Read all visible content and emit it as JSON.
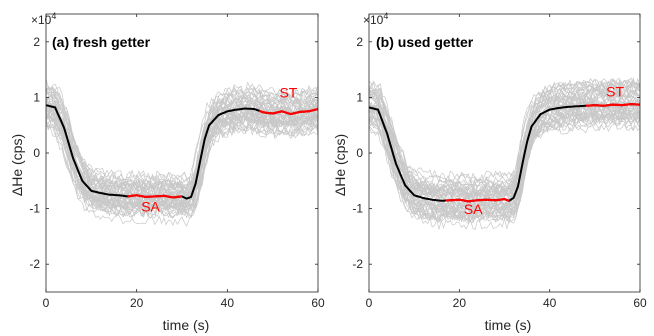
{
  "chart_data": [
    {
      "type": "line",
      "title": "(a) fresh getter",
      "xlabel": "time (s)",
      "ylabel": "ΔHe (cps)",
      "y_multiplier": "×10",
      "y_exponent": "4",
      "xlim": [
        0,
        60
      ],
      "ylim": [
        -25000,
        25000
      ],
      "xticks": [
        0,
        20,
        40,
        60
      ],
      "yticks": [
        -20000,
        -10000,
        0,
        10000,
        20000
      ],
      "ytick_labels": [
        "-2",
        "-1",
        "0",
        "1",
        "2"
      ],
      "grid": false,
      "mean_curve": {
        "name": "mean",
        "color": "#000000",
        "x": [
          0,
          2,
          4,
          6,
          8,
          10,
          12,
          14,
          16,
          18,
          20,
          22,
          24,
          26,
          28,
          30,
          31,
          32,
          33,
          34,
          35,
          36,
          38,
          40,
          42,
          44,
          46,
          48,
          50,
          52,
          54,
          56,
          58,
          60
        ],
        "y": [
          8600,
          8200,
          4500,
          -1000,
          -5000,
          -6800,
          -7200,
          -7500,
          -7600,
          -7800,
          -7600,
          -7900,
          -7800,
          -7700,
          -8000,
          -7800,
          -8200,
          -7900,
          -5500,
          -1500,
          2500,
          5000,
          6800,
          7500,
          7800,
          8000,
          7900,
          7300,
          7100,
          7500,
          7000,
          7400,
          7500,
          7900
        ]
      },
      "band": {
        "color": "#c8c8c8",
        "count": 48,
        "spread": 3200
      },
      "annotations": [
        {
          "label": "SA",
          "color": "#ff0000",
          "x_start": 18,
          "x_end": 30,
          "text_x": 21,
          "text_y": -10500
        },
        {
          "label": "ST",
          "color": "#ff0000",
          "x_start": 47,
          "x_end": 60,
          "text_x": 51.5,
          "text_y": 10000
        }
      ]
    },
    {
      "type": "line",
      "title": "(b) used getter",
      "xlabel": "time (s)",
      "ylabel": "ΔHe (cps)",
      "y_multiplier": "×10",
      "y_exponent": "4",
      "xlim": [
        0,
        60
      ],
      "ylim": [
        -25000,
        25000
      ],
      "xticks": [
        0,
        20,
        40,
        60
      ],
      "yticks": [
        -20000,
        -10000,
        0,
        10000,
        20000
      ],
      "ytick_labels": [
        "-2",
        "-1",
        "0",
        "1",
        "2"
      ],
      "grid": false,
      "mean_curve": {
        "name": "mean",
        "color": "#000000",
        "x": [
          0,
          2,
          4,
          6,
          8,
          10,
          12,
          14,
          16,
          18,
          20,
          22,
          24,
          26,
          28,
          30,
          31,
          32,
          33,
          34,
          35,
          36,
          38,
          40,
          42,
          44,
          46,
          48,
          50,
          52,
          54,
          56,
          58,
          60
        ],
        "y": [
          8200,
          7800,
          3500,
          -2000,
          -5800,
          -7600,
          -8100,
          -8400,
          -8600,
          -8500,
          -8400,
          -8700,
          -8500,
          -8400,
          -8500,
          -8300,
          -8600,
          -8100,
          -6000,
          -1800,
          2000,
          4800,
          7000,
          7800,
          8100,
          8300,
          8400,
          8500,
          8600,
          8500,
          8700,
          8600,
          8800,
          8700
        ]
      },
      "band": {
        "color": "#c8c8c8",
        "count": 48,
        "spread": 3400
      },
      "annotations": [
        {
          "label": "SA",
          "color": "#ff0000",
          "x_start": 17,
          "x_end": 31,
          "text_x": 21,
          "text_y": -11000
        },
        {
          "label": "ST",
          "color": "#ff0000",
          "x_start": 48,
          "x_end": 60,
          "text_x": 52.5,
          "text_y": 10200
        }
      ]
    }
  ]
}
